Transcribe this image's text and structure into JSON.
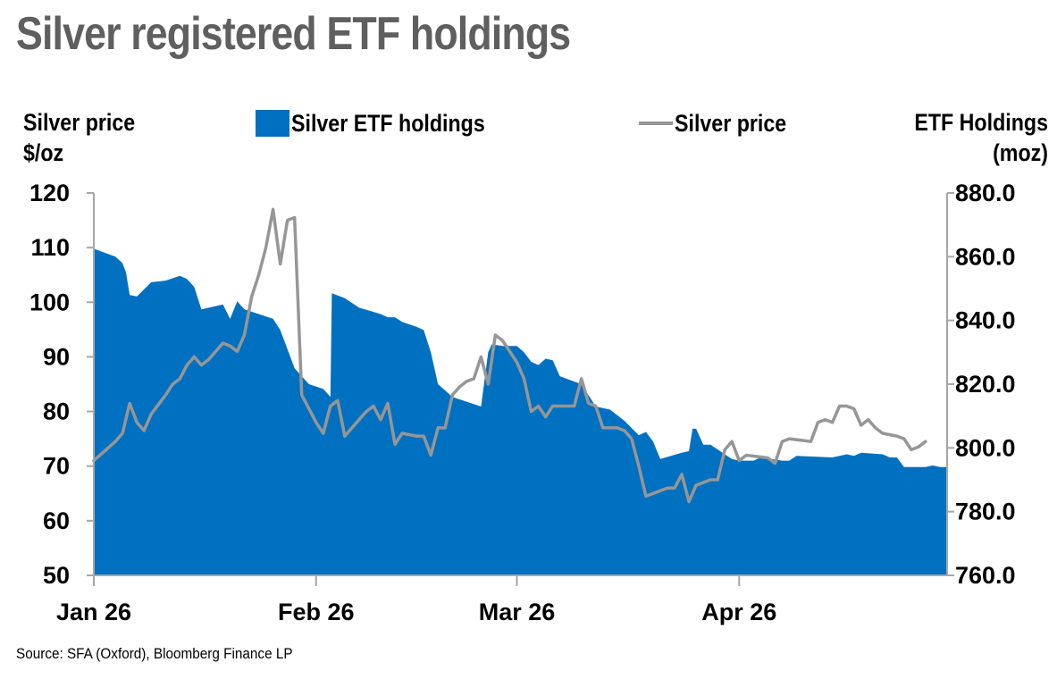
{
  "title": "Silver registered ETF holdings",
  "source": "Source: SFA (Oxford), Bloomberg Finance LP",
  "chart_data": {
    "type": "area",
    "left_axis": {
      "label_line1": "Silver price",
      "label_line2": "$/oz",
      "range": [
        50,
        120
      ],
      "ticks": [
        "50",
        "60",
        "70",
        "80",
        "90",
        "100",
        "110",
        "120"
      ]
    },
    "right_axis": {
      "label_line1": "ETF Holdings",
      "label_line2": "(moz)",
      "range": [
        760,
        880
      ],
      "ticks": [
        "760.0",
        "780.0",
        "800.0",
        "820.0",
        "840.0",
        "860.0",
        "880.0"
      ]
    },
    "x_axis": {
      "range": [
        0,
        119
      ],
      "ticks": [
        {
          "label": "Jan 26",
          "x": 0
        },
        {
          "label": "Feb 26",
          "x": 31
        },
        {
          "label": "Mar 26",
          "x": 59
        },
        {
          "label": "Apr 26",
          "x": 90
        }
      ]
    },
    "grid": false,
    "legend_position": "top-center",
    "colors": {
      "etf": "#0070c0",
      "price": "#969696"
    },
    "series": [
      {
        "name": "Silver ETF holdings",
        "axis": "right",
        "type": "area",
        "points": [
          [
            0,
            862.5
          ],
          [
            3,
            860.0
          ],
          [
            4,
            858.0
          ],
          [
            4.5,
            855.0
          ],
          [
            5,
            848.0
          ],
          [
            6,
            847.5
          ],
          [
            8,
            852.0
          ],
          [
            10,
            852.5
          ],
          [
            12,
            854.0
          ],
          [
            13,
            853.0
          ],
          [
            14,
            850.5
          ],
          [
            15,
            843.5
          ],
          [
            17,
            844.5
          ],
          [
            18,
            845.0
          ],
          [
            19,
            840.5
          ],
          [
            20,
            846.0
          ],
          [
            21,
            843.5
          ],
          [
            23,
            842.0
          ],
          [
            25,
            840.5
          ],
          [
            26,
            837.0
          ],
          [
            28,
            825.0
          ],
          [
            30,
            820.0
          ],
          [
            32,
            818.5
          ],
          [
            33,
            816.0
          ],
          [
            33.2,
            848.5
          ],
          [
            35,
            847.0
          ],
          [
            37,
            844.0
          ],
          [
            40,
            842.0
          ],
          [
            41,
            841.0
          ],
          [
            42,
            841.0
          ],
          [
            43,
            839.5
          ],
          [
            45,
            838.0
          ],
          [
            46,
            837.0
          ],
          [
            47,
            830.0
          ],
          [
            48,
            820.0
          ],
          [
            50,
            816.0
          ],
          [
            54,
            813.0
          ],
          [
            55,
            830.0
          ],
          [
            55.5,
            832.5
          ],
          [
            57,
            832.0
          ],
          [
            59,
            832.0
          ],
          [
            60,
            830.0
          ],
          [
            61,
            827.0
          ],
          [
            62,
            826.0
          ],
          [
            63,
            828.0
          ],
          [
            64,
            827.5
          ],
          [
            65,
            822.5
          ],
          [
            68,
            820.0
          ],
          [
            70,
            813.0
          ],
          [
            72,
            812.0
          ],
          [
            74,
            808.5
          ],
          [
            76,
            804.0
          ],
          [
            77,
            805.0
          ],
          [
            78,
            802.0
          ],
          [
            79,
            796.5
          ],
          [
            82,
            798.5
          ],
          [
            83,
            799.0
          ],
          [
            83.5,
            806.0
          ],
          [
            84,
            806.0
          ],
          [
            85,
            801.0
          ],
          [
            86,
            801.0
          ],
          [
            88,
            798.0
          ],
          [
            89,
            796.5
          ],
          [
            90,
            796.0
          ],
          [
            92,
            796.0
          ],
          [
            93,
            797.0
          ],
          [
            96,
            796.0
          ],
          [
            97,
            796.0
          ],
          [
            98,
            797.5
          ],
          [
            103,
            797.0
          ],
          [
            105,
            798.0
          ],
          [
            106,
            797.5
          ],
          [
            107,
            798.5
          ],
          [
            110,
            798.0
          ],
          [
            111,
            797.0
          ],
          [
            112,
            797.0
          ],
          [
            113,
            794.0
          ],
          [
            114,
            794.0
          ],
          [
            116,
            794.0
          ],
          [
            117,
            794.5
          ],
          [
            118,
            794.0
          ],
          [
            119,
            794.0
          ]
        ]
      },
      {
        "name": "Silver price",
        "axis": "left",
        "type": "line",
        "points": [
          [
            0,
            71.0
          ],
          [
            3,
            74.5
          ],
          [
            4,
            76.0
          ],
          [
            5,
            81.5
          ],
          [
            6,
            78.0
          ],
          [
            7,
            76.5
          ],
          [
            8,
            79.5
          ],
          [
            10,
            83.0
          ],
          [
            11,
            85.0
          ],
          [
            12,
            86.0
          ],
          [
            13,
            88.5
          ],
          [
            14,
            90.0
          ],
          [
            15,
            88.5
          ],
          [
            16,
            89.5
          ],
          [
            17,
            91.0
          ],
          [
            18,
            92.5
          ],
          [
            19,
            92.0
          ],
          [
            20,
            91.0
          ],
          [
            21,
            94.0
          ],
          [
            22,
            101.0
          ],
          [
            23,
            105.0
          ],
          [
            24,
            110.0
          ],
          [
            25,
            117.0
          ],
          [
            26,
            107.0
          ],
          [
            27,
            115.0
          ],
          [
            28,
            115.5
          ],
          [
            29,
            83.0
          ],
          [
            30,
            80.5
          ],
          [
            31,
            78.0
          ],
          [
            32,
            76.0
          ],
          [
            33,
            81.0
          ],
          [
            34,
            82.0
          ],
          [
            35,
            75.5
          ],
          [
            36,
            77.0
          ],
          [
            37,
            78.5
          ],
          [
            38,
            80.0
          ],
          [
            39,
            81.0
          ],
          [
            40,
            78.5
          ],
          [
            41,
            81.5
          ],
          [
            42,
            74.0
          ],
          [
            43,
            76.0
          ],
          [
            45,
            75.5
          ],
          [
            46,
            75.5
          ],
          [
            47,
            72.0
          ],
          [
            48,
            77.0
          ],
          [
            49,
            77.0
          ],
          [
            50,
            83.0
          ],
          [
            51,
            84.5
          ],
          [
            52,
            85.5
          ],
          [
            53,
            86.0
          ],
          [
            54,
            90.0
          ],
          [
            55,
            85.0
          ],
          [
            56,
            94.0
          ],
          [
            57,
            93.0
          ],
          [
            58,
            91.0
          ],
          [
            59,
            89.0
          ],
          [
            60,
            86.0
          ],
          [
            61,
            80.0
          ],
          [
            62,
            81.0
          ],
          [
            63,
            79.0
          ],
          [
            64,
            81.0
          ],
          [
            67,
            81.0
          ],
          [
            68,
            86.0
          ],
          [
            69,
            81.5
          ],
          [
            70,
            81.0
          ],
          [
            71,
            77.0
          ],
          [
            73,
            77.0
          ],
          [
            74,
            76.5
          ],
          [
            75,
            75.0
          ],
          [
            76,
            70.0
          ],
          [
            77,
            64.5
          ],
          [
            78,
            65.0
          ],
          [
            80,
            66.0
          ],
          [
            81,
            66.0
          ],
          [
            82,
            68.5
          ],
          [
            83,
            63.5
          ],
          [
            84,
            66.5
          ],
          [
            86,
            67.5
          ],
          [
            87,
            67.5
          ],
          [
            88,
            73.0
          ],
          [
            89,
            74.5
          ],
          [
            90,
            71.0
          ],
          [
            91,
            72.0
          ],
          [
            94,
            71.5
          ],
          [
            95,
            70.5
          ],
          [
            96,
            74.5
          ],
          [
            97,
            75.0
          ],
          [
            100,
            74.5
          ],
          [
            101,
            78.0
          ],
          [
            102,
            78.5
          ],
          [
            103,
            78.0
          ],
          [
            104,
            81.0
          ],
          [
            105,
            81.0
          ],
          [
            106,
            80.5
          ],
          [
            107,
            77.5
          ],
          [
            108,
            78.5
          ],
          [
            109,
            77.0
          ],
          [
            110,
            76.0
          ],
          [
            112,
            75.5
          ],
          [
            113,
            75.0
          ],
          [
            114,
            73.0
          ],
          [
            115,
            73.5
          ],
          [
            116,
            74.5
          ]
        ]
      }
    ]
  }
}
